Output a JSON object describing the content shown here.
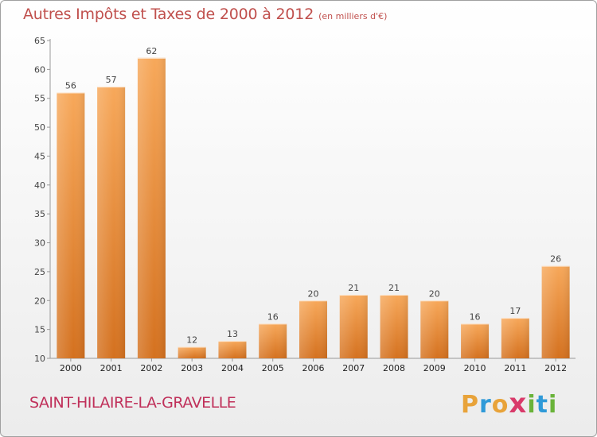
{
  "title": "Autres Impôts et Taxes de 2000 à 2012",
  "title_unit": "(en milliers d'€)",
  "commune": "SAINT-HILAIRE-LA-GRAVELLE",
  "logo": {
    "text": "Proxiti",
    "letters": [
      "P",
      "r",
      "o",
      "x",
      "i",
      "t",
      "i"
    ],
    "colors": [
      "#e8a33a",
      "#2f9ad8",
      "#e8a33a",
      "#d93a6a",
      "#6ab33a",
      "#2f9ad8",
      "#6ab33a"
    ]
  },
  "chart_data": {
    "type": "bar",
    "title": "Autres Impôts et Taxes de 2000 à 2012",
    "xlabel": "",
    "ylabel": "",
    "categories": [
      "2000",
      "2001",
      "2002",
      "2003",
      "2004",
      "2005",
      "2006",
      "2007",
      "2008",
      "2009",
      "2010",
      "2011",
      "2012"
    ],
    "values": [
      56,
      57,
      62,
      12,
      13,
      16,
      20,
      21,
      21,
      20,
      16,
      17,
      26
    ],
    "ylim": [
      10,
      65
    ],
    "yticks": [
      10,
      15,
      20,
      25,
      30,
      35,
      40,
      45,
      50,
      55,
      60,
      65
    ],
    "grid": false,
    "bar_color_top": "#f7a85a",
    "bar_color_bottom": "#d4711f",
    "title_color": "#c0504d"
  }
}
